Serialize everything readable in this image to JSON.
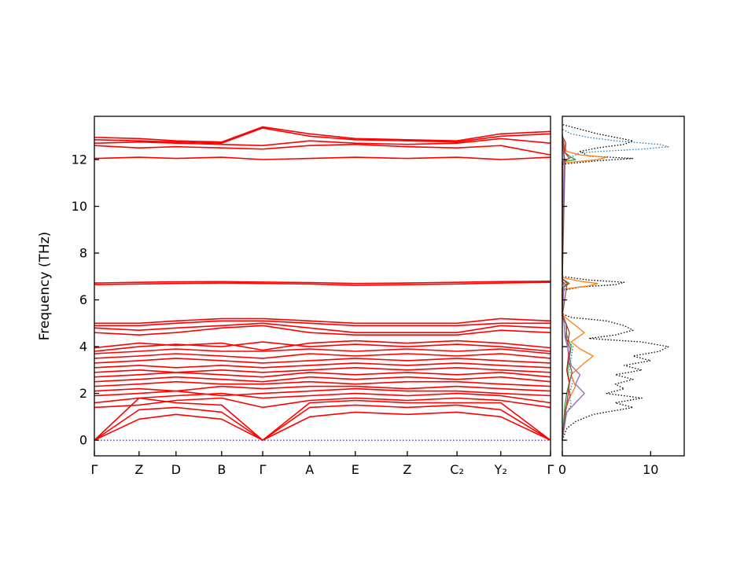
{
  "figure": {
    "background": "#ffffff",
    "frame_color": "#000000",
    "band_color": "#ff0000",
    "zero_line_color": "#00008b"
  },
  "chart_data": [
    {
      "type": "line",
      "panel": "phonon-band-structure",
      "title": "",
      "xlabel": "",
      "ylabel": "Frequency (THz)",
      "ylim": [
        -0.67,
        13.85
      ],
      "yticks": [
        0,
        2,
        4,
        6,
        8,
        10,
        12
      ],
      "kpoint_labels": [
        "Γ",
        "Z",
        "D",
        "B",
        "Γ",
        "A",
        "E",
        "Z",
        "C₂",
        "Y₂",
        "Γ"
      ],
      "kpoint_positions": [
        0,
        0.098,
        0.179,
        0.279,
        0.369,
        0.472,
        0.572,
        0.686,
        0.795,
        0.891,
        1.0
      ],
      "zero_line_freq": 0,
      "line_color": "#ff0000",
      "bands": [
        [
          0,
          0.9,
          1.1,
          0.9,
          0,
          1.0,
          1.2,
          1.1,
          1.2,
          1.0,
          0
        ],
        [
          0,
          1.3,
          1.4,
          1.2,
          0,
          1.4,
          1.5,
          1.4,
          1.5,
          1.3,
          0
        ],
        [
          0,
          1.8,
          1.6,
          1.5,
          0,
          1.6,
          1.7,
          1.6,
          1.6,
          1.6,
          0
        ],
        [
          1.4,
          1.5,
          1.7,
          1.8,
          1.4,
          1.7,
          1.8,
          1.7,
          1.8,
          1.7,
          1.4
        ],
        [
          1.6,
          1.8,
          1.9,
          2.0,
          1.8,
          1.9,
          2.0,
          1.9,
          2.0,
          1.9,
          1.6
        ],
        [
          1.9,
          2.0,
          2.1,
          1.9,
          2.0,
          2.1,
          2.2,
          2.1,
          2.1,
          2.0,
          1.9
        ],
        [
          2.1,
          2.2,
          2.1,
          2.3,
          2.2,
          2.3,
          2.3,
          2.2,
          2.3,
          2.2,
          2.1
        ],
        [
          2.3,
          2.4,
          2.5,
          2.4,
          2.4,
          2.5,
          2.4,
          2.5,
          2.5,
          2.4,
          2.3
        ],
        [
          2.5,
          2.6,
          2.7,
          2.6,
          2.5,
          2.7,
          2.6,
          2.7,
          2.6,
          2.7,
          2.5
        ],
        [
          2.7,
          2.8,
          2.9,
          2.8,
          2.7,
          2.9,
          2.8,
          2.9,
          2.8,
          2.9,
          2.7
        ],
        [
          2.9,
          3.0,
          2.9,
          3.0,
          2.9,
          3.0,
          3.1,
          3.0,
          3.1,
          3.0,
          2.9
        ],
        [
          3.1,
          3.2,
          3.1,
          3.2,
          3.1,
          3.2,
          3.3,
          3.2,
          3.3,
          3.2,
          3.1
        ],
        [
          3.3,
          3.4,
          3.5,
          3.4,
          3.3,
          3.4,
          3.5,
          3.4,
          3.5,
          3.4,
          3.3
        ],
        [
          3.5,
          3.6,
          3.7,
          3.6,
          3.5,
          3.7,
          3.6,
          3.7,
          3.6,
          3.7,
          3.5
        ],
        [
          3.7,
          3.8,
          3.9,
          3.8,
          3.8,
          3.9,
          3.8,
          3.9,
          3.8,
          3.9,
          3.7
        ],
        [
          3.8,
          4.0,
          4.1,
          4.0,
          4.2,
          4.0,
          4.1,
          4.0,
          4.1,
          4.0,
          3.8
        ],
        [
          3.95,
          4.15,
          4.05,
          4.15,
          3.85,
          4.15,
          4.25,
          4.15,
          4.25,
          4.15,
          3.95
        ],
        [
          4.6,
          4.5,
          4.6,
          4.8,
          4.9,
          4.6,
          4.5,
          4.5,
          4.5,
          4.7,
          4.6
        ],
        [
          4.8,
          4.7,
          4.8,
          4.9,
          5.0,
          4.8,
          4.6,
          4.6,
          4.6,
          4.9,
          4.8
        ],
        [
          4.9,
          4.9,
          5.0,
          5.1,
          5.1,
          5.0,
          4.9,
          4.9,
          4.9,
          5.0,
          5.0
        ],
        [
          5.0,
          5.0,
          5.1,
          5.2,
          5.2,
          5.1,
          5.0,
          5.0,
          5.0,
          5.2,
          5.1
        ],
        [
          6.65,
          6.68,
          6.7,
          6.72,
          6.7,
          6.68,
          6.62,
          6.65,
          6.68,
          6.72,
          6.75
        ],
        [
          6.72,
          6.75,
          6.77,
          6.78,
          6.76,
          6.74,
          6.7,
          6.72,
          6.75,
          6.78,
          6.8
        ],
        [
          12.05,
          12.1,
          12.05,
          12.1,
          12.0,
          12.05,
          12.1,
          12.05,
          12.1,
          12.0,
          12.1
        ],
        [
          12.6,
          12.5,
          12.55,
          12.5,
          12.45,
          12.6,
          12.65,
          12.55,
          12.5,
          12.6,
          12.2
        ],
        [
          12.7,
          12.75,
          12.7,
          12.65,
          12.6,
          12.8,
          12.7,
          12.65,
          12.7,
          12.9,
          12.7
        ],
        [
          12.85,
          12.8,
          12.75,
          12.7,
          13.35,
          13.0,
          12.85,
          12.8,
          12.75,
          13.0,
          13.1
        ],
        [
          12.95,
          12.9,
          12.8,
          12.75,
          13.4,
          13.1,
          12.9,
          12.85,
          12.8,
          13.1,
          13.2
        ]
      ]
    },
    {
      "type": "line",
      "panel": "phonon-dos",
      "title": "",
      "xlabel": "",
      "ylabel": "",
      "xlim": [
        0,
        13.8
      ],
      "xticks": [
        0,
        10
      ],
      "ylim": [
        -0.67,
        13.85
      ],
      "series": [
        {
          "name": "total-dos",
          "color": "#000000",
          "style": "dotted",
          "points": [
            [
              0,
              0
            ],
            [
              0.5,
              0.5
            ],
            [
              0.8,
              1.5
            ],
            [
              1.1,
              3.5
            ],
            [
              1.4,
              8
            ],
            [
              1.6,
              6
            ],
            [
              1.8,
              9
            ],
            [
              2.0,
              5
            ],
            [
              2.2,
              7
            ],
            [
              2.4,
              6
            ],
            [
              2.6,
              8
            ],
            [
              2.8,
              6
            ],
            [
              3.0,
              9
            ],
            [
              3.2,
              7
            ],
            [
              3.4,
              10
            ],
            [
              3.6,
              8
            ],
            [
              3.8,
              11
            ],
            [
              4.0,
              12
            ],
            [
              4.2,
              9
            ],
            [
              4.35,
              3
            ],
            [
              4.5,
              6
            ],
            [
              4.7,
              8
            ],
            [
              4.9,
              7
            ],
            [
              5.1,
              5
            ],
            [
              5.25,
              1
            ],
            [
              5.4,
              0
            ],
            [
              6.4,
              0
            ],
            [
              6.55,
              2
            ],
            [
              6.65,
              6
            ],
            [
              6.75,
              7
            ],
            [
              6.85,
              3
            ],
            [
              7.0,
              0
            ],
            [
              11.8,
              0
            ],
            [
              11.95,
              4
            ],
            [
              12.05,
              8
            ],
            [
              12.15,
              3
            ],
            [
              12.35,
              2
            ],
            [
              12.5,
              4
            ],
            [
              12.65,
              7
            ],
            [
              12.8,
              8
            ],
            [
              12.95,
              6
            ],
            [
              13.1,
              4
            ],
            [
              13.3,
              2
            ],
            [
              13.5,
              0
            ]
          ]
        },
        {
          "name": "pdos-blue",
          "color": "#1f77b4",
          "style": "dotted",
          "points": [
            [
              0,
              0
            ],
            [
              1.0,
              0.3
            ],
            [
              1.5,
              1.0
            ],
            [
              2.0,
              0.8
            ],
            [
              2.5,
              1.2
            ],
            [
              3.0,
              0.8
            ],
            [
              3.5,
              1.0
            ],
            [
              4.0,
              1.2
            ],
            [
              4.3,
              0.5
            ],
            [
              5.0,
              0.4
            ],
            [
              5.3,
              0
            ],
            [
              6.5,
              0
            ],
            [
              6.7,
              0.5
            ],
            [
              6.9,
              0
            ],
            [
              11.9,
              0
            ],
            [
              12.1,
              1
            ],
            [
              12.3,
              2
            ],
            [
              12.45,
              9
            ],
            [
              12.55,
              12
            ],
            [
              12.65,
              11
            ],
            [
              12.8,
              6
            ],
            [
              12.95,
              3
            ],
            [
              13.1,
              1
            ],
            [
              13.3,
              0
            ]
          ]
        },
        {
          "name": "pdos-orange",
          "color": "#ff7f0e",
          "style": "solid",
          "points": [
            [
              0,
              0
            ],
            [
              1.2,
              0.3
            ],
            [
              1.8,
              0.8
            ],
            [
              2.3,
              1.5
            ],
            [
              2.8,
              1.0
            ],
            [
              3.3,
              2.5
            ],
            [
              3.6,
              3.5
            ],
            [
              3.9,
              2.0
            ],
            [
              4.2,
              1.0
            ],
            [
              4.6,
              2.5
            ],
            [
              4.9,
              1.5
            ],
            [
              5.2,
              0.5
            ],
            [
              5.4,
              0
            ],
            [
              6.45,
              0
            ],
            [
              6.6,
              3
            ],
            [
              6.7,
              4
            ],
            [
              6.8,
              2
            ],
            [
              6.95,
              0
            ],
            [
              11.85,
              0
            ],
            [
              12.0,
              4
            ],
            [
              12.1,
              5
            ],
            [
              12.2,
              2
            ],
            [
              12.35,
              0.5
            ],
            [
              12.5,
              0.3
            ],
            [
              12.7,
              0.2
            ],
            [
              13.0,
              0
            ]
          ]
        },
        {
          "name": "pdos-green",
          "color": "#2ca02c",
          "style": "solid",
          "points": [
            [
              0,
              0
            ],
            [
              1.5,
              0.3
            ],
            [
              2.0,
              0.5
            ],
            [
              2.5,
              0.8
            ],
            [
              3.0,
              0.6
            ],
            [
              3.5,
              0.8
            ],
            [
              4.0,
              1.0
            ],
            [
              4.5,
              0.5
            ],
            [
              5.0,
              0.4
            ],
            [
              5.3,
              0
            ],
            [
              6.5,
              0
            ],
            [
              6.7,
              0.8
            ],
            [
              6.9,
              0
            ],
            [
              11.9,
              0
            ],
            [
              12.0,
              1.5
            ],
            [
              12.1,
              1.0
            ],
            [
              12.3,
              0.3
            ],
            [
              12.6,
              0.2
            ],
            [
              13.0,
              0
            ]
          ]
        },
        {
          "name": "pdos-red",
          "color": "#d62728",
          "style": "solid",
          "points": [
            [
              0,
              0
            ],
            [
              1.3,
              0.4
            ],
            [
              1.8,
              0.6
            ],
            [
              2.4,
              0.8
            ],
            [
              3.0,
              0.5
            ],
            [
              3.6,
              0.7
            ],
            [
              4.1,
              0.6
            ],
            [
              4.6,
              0.8
            ],
            [
              5.1,
              0.3
            ],
            [
              5.4,
              0
            ],
            [
              6.5,
              0
            ],
            [
              6.7,
              0.6
            ],
            [
              6.9,
              0
            ],
            [
              11.9,
              0
            ],
            [
              12.05,
              0.8
            ],
            [
              12.3,
              0.3
            ],
            [
              12.7,
              0.4
            ],
            [
              13.0,
              0
            ]
          ]
        },
        {
          "name": "pdos-purple",
          "color": "#9467bd",
          "style": "solid",
          "points": [
            [
              0,
              0
            ],
            [
              1.2,
              0.5
            ],
            [
              1.6,
              1.5
            ],
            [
              2.0,
              2.5
            ],
            [
              2.4,
              1.5
            ],
            [
              2.8,
              2.0
            ],
            [
              3.2,
              1.0
            ],
            [
              3.6,
              0.8
            ],
            [
              4.0,
              0.6
            ],
            [
              4.4,
              0.3
            ],
            [
              5.0,
              0.2
            ],
            [
              5.4,
              0
            ],
            [
              6.6,
              0.2
            ],
            [
              6.8,
              0
            ],
            [
              12.0,
              0.2
            ],
            [
              12.5,
              0.1
            ],
            [
              13.0,
              0
            ]
          ]
        },
        {
          "name": "pdos-brown",
          "color": "#8c564b",
          "style": "solid",
          "points": [
            [
              0,
              0
            ],
            [
              1.4,
              0.4
            ],
            [
              1.9,
              0.9
            ],
            [
              2.3,
              0.7
            ],
            [
              2.9,
              1.1
            ],
            [
              3.4,
              0.7
            ],
            [
              3.9,
              0.9
            ],
            [
              4.4,
              0.4
            ],
            [
              4.9,
              0.5
            ],
            [
              5.3,
              0
            ],
            [
              6.6,
              0.5
            ],
            [
              6.8,
              0
            ],
            [
              11.95,
              0.3
            ],
            [
              12.2,
              0.2
            ],
            [
              12.8,
              0.1
            ],
            [
              13.1,
              0
            ]
          ]
        }
      ]
    }
  ]
}
